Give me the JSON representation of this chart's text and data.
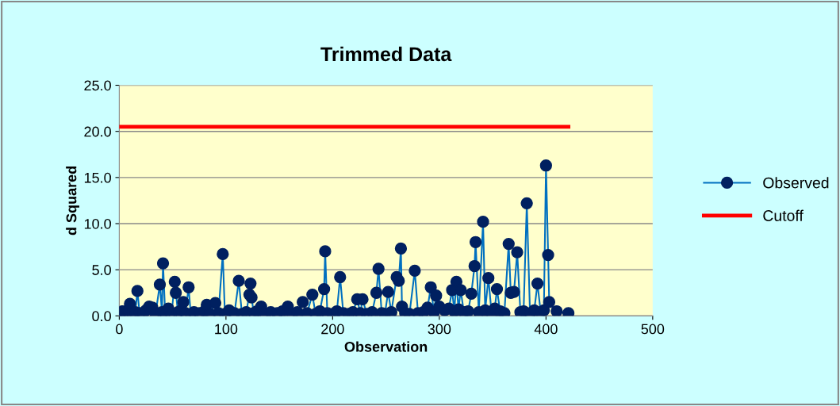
{
  "chart_data": {
    "type": "line",
    "title": "Trimmed Data",
    "xlabel": "Observation",
    "ylabel": "d Squared",
    "xlim": [
      0,
      500
    ],
    "xticks": [
      0,
      100,
      200,
      300,
      400,
      500
    ],
    "ylim": [
      0,
      25
    ],
    "yticks": [
      {
        "value": 0,
        "label": "0.0"
      },
      {
        "value": 5,
        "label": "5.0"
      },
      {
        "value": 10,
        "label": "10.0"
      },
      {
        "value": 15,
        "label": "15.0"
      },
      {
        "value": 20,
        "label": "20.0"
      },
      {
        "value": 25,
        "label": "25.0"
      }
    ],
    "grid": "y",
    "legend": "right",
    "marker": "circle",
    "series": [
      {
        "name": "Observed",
        "color": "#0070c0",
        "x": [
          1,
          3,
          6,
          8,
          10,
          12,
          15,
          17,
          19,
          22,
          25,
          28,
          31,
          34,
          38,
          40,
          41,
          43,
          46,
          49,
          52,
          53,
          55,
          58,
          60,
          62,
          65,
          67,
          70,
          75,
          80,
          82,
          85,
          90,
          93,
          97,
          99,
          103,
          108,
          112,
          115,
          119,
          122,
          123,
          124,
          126,
          129,
          133,
          137,
          142,
          148,
          153,
          158,
          162,
          167,
          172,
          176,
          181,
          184,
          188,
          192,
          193,
          195,
          200,
          204,
          207,
          210,
          215,
          219,
          223,
          226,
          228,
          232,
          237,
          241,
          243,
          246,
          249,
          252,
          255,
          260,
          262,
          264,
          265,
          268,
          272,
          277,
          280,
          285,
          289,
          292,
          295,
          297,
          300,
          305,
          309,
          312,
          314,
          316,
          318,
          320,
          323,
          327,
          330,
          333,
          334,
          337,
          341,
          343,
          346,
          349,
          352,
          354,
          357,
          361,
          365,
          367,
          370,
          373,
          376,
          379,
          382,
          385,
          389,
          392,
          395,
          398,
          400,
          402,
          403,
          410,
          421
        ],
        "values": [
          0.3,
          0.5,
          0.2,
          0.6,
          1.3,
          0.2,
          0.4,
          2.7,
          0.3,
          0.2,
          0.6,
          1.0,
          0.9,
          0.2,
          3.4,
          0.4,
          5.7,
          0.3,
          0.8,
          0.2,
          3.7,
          2.5,
          0.4,
          0.6,
          1.5,
          0.3,
          3.1,
          0.2,
          0.4,
          0.3,
          0.5,
          1.2,
          0.2,
          1.4,
          0.3,
          6.7,
          0.2,
          0.6,
          0.3,
          3.8,
          0.2,
          0.4,
          2.3,
          3.5,
          2.0,
          0.3,
          0.5,
          1.0,
          0.2,
          0.4,
          0.3,
          0.5,
          1.0,
          0.2,
          0.4,
          1.5,
          0.3,
          2.3,
          0.2,
          0.5,
          2.9,
          7.0,
          0.3,
          0.2,
          0.5,
          4.2,
          0.3,
          0.2,
          0.4,
          1.8,
          0.3,
          1.8,
          0.2,
          0.4,
          2.5,
          5.1,
          0.3,
          0.2,
          2.6,
          0.4,
          4.2,
          3.8,
          7.3,
          1.0,
          0.3,
          0.2,
          4.9,
          0.3,
          0.4,
          0.9,
          3.1,
          0.4,
          2.2,
          1.0,
          0.6,
          0.8,
          2.8,
          0.5,
          3.7,
          0.7,
          2.8,
          0.4,
          0.5,
          2.4,
          5.4,
          8.0,
          0.4,
          10.2,
          0.6,
          4.1,
          0.3,
          0.8,
          2.9,
          0.5,
          0.3,
          7.8,
          2.5,
          2.6,
          6.9,
          0.4,
          0.5,
          12.2,
          0.3,
          0.6,
          3.5,
          0.4,
          0.6,
          16.3,
          6.6,
          1.5,
          0.5,
          0.3
        ]
      },
      {
        "name": "Cutoff",
        "color": "#ff0000",
        "marker": "none",
        "x": [
          0,
          421
        ],
        "values": [
          20.5,
          20.5
        ]
      }
    ]
  }
}
